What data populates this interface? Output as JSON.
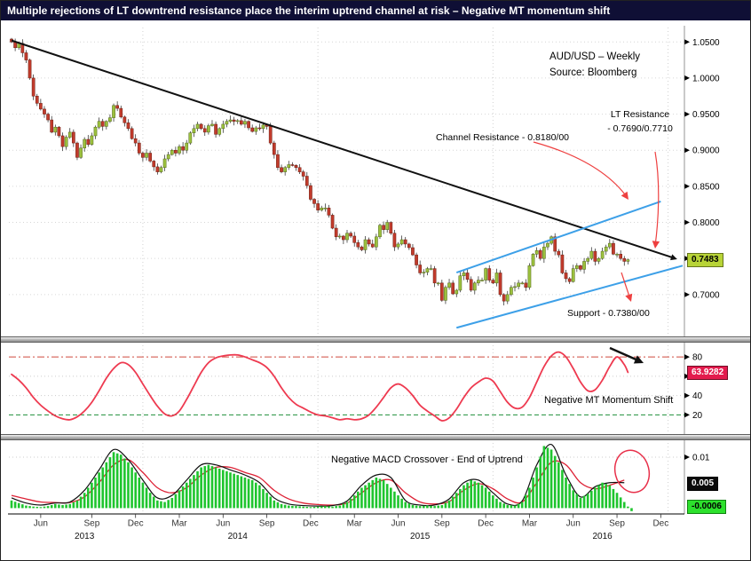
{
  "title": "Multiple rejections of LT downtrend resistance place the interim uptrend channel at risk – Negative MT momentum shift",
  "chart_data": [
    {
      "id": "price-panel",
      "type": "candlestick",
      "instrument": "AUD/USD – Weekly",
      "source": "Source: Bloomberg",
      "last_price": "0.7483",
      "ylim": [
        0.642,
        1.07
      ],
      "y_ticks": [
        1.05,
        1.0,
        0.95,
        0.9,
        0.85,
        0.8,
        0.75,
        0.7
      ],
      "y_tick_labels": [
        "1.0500",
        "1.0000",
        "0.9500",
        "0.9000",
        "0.8500",
        "0.8000",
        "0.7500",
        "0.7000"
      ],
      "x_ticks": {
        "idx": [
          8,
          22,
          34,
          46,
          58,
          70,
          82,
          94,
          106,
          118,
          130,
          142,
          154,
          166,
          178
        ],
        "labels": [
          "Jun",
          "Sep",
          "Dec",
          "Mar",
          "Jun",
          "Sep",
          "Dec",
          "Mar",
          "Jun",
          "Sep",
          "Dec",
          "Mar",
          "Jun",
          "Sep",
          "Dec"
        ]
      },
      "years": [
        {
          "label": "2013",
          "i": 20
        },
        {
          "label": "2014",
          "i": 62
        },
        {
          "label": "2015",
          "i": 112
        },
        {
          "label": "2016",
          "i": 162
        }
      ],
      "closes": [
        1.05,
        1.042,
        1.048,
        1.035,
        1.025,
        1.0,
        0.975,
        0.965,
        0.957,
        0.95,
        0.942,
        0.925,
        0.932,
        0.92,
        0.905,
        0.918,
        0.925,
        0.91,
        0.89,
        0.903,
        0.915,
        0.908,
        0.92,
        0.932,
        0.94,
        0.933,
        0.94,
        0.945,
        0.962,
        0.958,
        0.946,
        0.938,
        0.93,
        0.916,
        0.91,
        0.896,
        0.89,
        0.896,
        0.885,
        0.877,
        0.87,
        0.876,
        0.888,
        0.894,
        0.9,
        0.896,
        0.905,
        0.9,
        0.91,
        0.924,
        0.93,
        0.936,
        0.93,
        0.925,
        0.934,
        0.936,
        0.922,
        0.93,
        0.936,
        0.94,
        0.942,
        0.94,
        0.941,
        0.936,
        0.94,
        0.931,
        0.926,
        0.931,
        0.93,
        0.935,
        0.933,
        0.91,
        0.894,
        0.876,
        0.87,
        0.876,
        0.88,
        0.879,
        0.876,
        0.87,
        0.864,
        0.851,
        0.832,
        0.826,
        0.817,
        0.82,
        0.82,
        0.81,
        0.792,
        0.78,
        0.781,
        0.776,
        0.785,
        0.781,
        0.772,
        0.766,
        0.762,
        0.776,
        0.77,
        0.766,
        0.78,
        0.796,
        0.79,
        0.8,
        0.785,
        0.766,
        0.77,
        0.776,
        0.77,
        0.765,
        0.755,
        0.741,
        0.73,
        0.731,
        0.736,
        0.736,
        0.716,
        0.716,
        0.692,
        0.71,
        0.716,
        0.701,
        0.706,
        0.726,
        0.73,
        0.721,
        0.706,
        0.716,
        0.72,
        0.72,
        0.736,
        0.72,
        0.716,
        0.73,
        0.7,
        0.691,
        0.7,
        0.71,
        0.711,
        0.716,
        0.716,
        0.71,
        0.74,
        0.756,
        0.761,
        0.75,
        0.766,
        0.771,
        0.78,
        0.76,
        0.755,
        0.73,
        0.722,
        0.718,
        0.736,
        0.74,
        0.735,
        0.746,
        0.75,
        0.76,
        0.746,
        0.75,
        0.76,
        0.766,
        0.771,
        0.756,
        0.756,
        0.75,
        0.746,
        0.7483
      ],
      "trendline": {
        "i1": 0,
        "p1": 1.052,
        "i2": 182,
        "p2": 0.75,
        "color": "#111111"
      },
      "channel": {
        "color": "#3da0e8",
        "upper": {
          "i1": 122,
          "p1": 0.7305,
          "i2": 178,
          "p2": 0.829
        },
        "lower": {
          "i1": 122,
          "p1": 0.654,
          "i2": 184,
          "p2": 0.74
        }
      },
      "annotations": {
        "channel_resistance": "Channel Resistance - 0.8180/00",
        "lt_resistance_1": "LT Resistance",
        "lt_resistance_2": "- 0.7690/0.7710",
        "support": "Support - 0.7380/00"
      },
      "colors": {
        "up": "#9cc13e",
        "down": "#c23b2c"
      }
    },
    {
      "id": "momentum-panel",
      "type": "line",
      "last_value": "63.9282",
      "ylim": [
        2,
        92
      ],
      "y_ticks": [
        80,
        60,
        40,
        20
      ],
      "overbought": 80,
      "oversold": 20,
      "step": 2,
      "values": [
        62,
        56,
        48,
        38,
        30,
        24,
        19,
        16,
        15,
        18,
        24,
        33,
        45,
        58,
        68,
        74,
        72,
        64,
        52,
        40,
        29,
        21,
        19,
        24,
        36,
        50,
        64,
        74,
        79,
        81,
        82,
        82,
        80,
        77,
        74,
        69,
        60,
        48,
        38,
        31,
        27,
        23,
        20,
        19,
        17,
        15,
        16,
        15,
        16,
        20,
        28,
        38,
        48,
        52,
        48,
        40,
        30,
        24,
        19,
        14,
        17,
        26,
        38,
        48,
        54,
        58,
        55,
        44,
        33,
        27,
        28,
        38,
        54,
        70,
        81,
        85,
        80,
        68,
        54,
        45,
        46,
        56,
        70,
        80,
        72,
        64
      ],
      "annotation": "Negative MT Momentum Shift",
      "color": "#ee3a50"
    },
    {
      "id": "macd-panel",
      "type": "histogram",
      "ylim": [
        -0.0008,
        0.0128
      ],
      "y_ticks": [
        {
          "v": 0.01,
          "label": "0.01"
        }
      ],
      "badge_macd": "0.005",
      "badge_hist": "-0.0006",
      "step": 2,
      "line_step": 4,
      "hist": [
        0.0015,
        0.001,
        0.0005,
        0.0003,
        0.0002,
        0.0004,
        0.0008,
        0.0006,
        0.0008,
        0.0015,
        0.003,
        0.005,
        0.007,
        0.009,
        0.011,
        0.0105,
        0.009,
        0.007,
        0.005,
        0.003,
        0.0015,
        0.0012,
        0.002,
        0.0035,
        0.005,
        0.0065,
        0.008,
        0.0085,
        0.008,
        0.0075,
        0.007,
        0.0065,
        0.006,
        0.0055,
        0.0045,
        0.003,
        0.0015,
        0.0008,
        0.0005,
        0.0004,
        0.0003,
        0.0002,
        0.0003,
        0.0004,
        0.0003,
        0.0005,
        0.0012,
        0.0025,
        0.004,
        0.005,
        0.006,
        0.0055,
        0.004,
        0.0025,
        0.0012,
        0.0006,
        0.0004,
        0.0005,
        0.0004,
        0.0006,
        0.0015,
        0.003,
        0.0045,
        0.0055,
        0.005,
        0.004,
        0.0025,
        0.0012,
        0.0006,
        0.0005,
        0.0012,
        0.004,
        0.008,
        0.0122,
        0.0115,
        0.009,
        0.006,
        0.0035,
        0.002,
        0.0028,
        0.004,
        0.005,
        0.0045,
        0.003,
        0.0012,
        -0.0006
      ],
      "macd_line": [
        0.002,
        0.001,
        0.0006,
        0.001,
        0.0012,
        0.0035,
        0.0075,
        0.0115,
        0.0095,
        0.0055,
        0.002,
        0.0025,
        0.0055,
        0.0085,
        0.0085,
        0.0075,
        0.0065,
        0.005,
        0.002,
        0.0008,
        0.0005,
        0.0004,
        0.0005,
        0.0014,
        0.0045,
        0.0065,
        0.006,
        0.0015,
        0.0006,
        0.0006,
        0.0018,
        0.005,
        0.0055,
        0.003,
        0.0008,
        0.0014,
        0.0085,
        0.0125,
        0.0065,
        0.0022,
        0.0042,
        0.005,
        0.005
      ],
      "signal_line": [
        0.0025,
        0.0018,
        0.0012,
        0.0011,
        0.0011,
        0.0022,
        0.005,
        0.0085,
        0.0095,
        0.007,
        0.004,
        0.003,
        0.004,
        0.0065,
        0.008,
        0.008,
        0.007,
        0.006,
        0.0035,
        0.0018,
        0.001,
        0.0007,
        0.0006,
        0.001,
        0.003,
        0.005,
        0.0055,
        0.003,
        0.0012,
        0.0008,
        0.0013,
        0.0035,
        0.0048,
        0.0038,
        0.0018,
        0.0012,
        0.005,
        0.009,
        0.0085,
        0.005,
        0.0038,
        0.0045,
        0.0055
      ],
      "annotation": "Negative MACD Crossover - End of Uptrend",
      "colors": {
        "hist": "#1ec52e",
        "macd": "#111111",
        "signal": "#dd2236"
      }
    }
  ]
}
